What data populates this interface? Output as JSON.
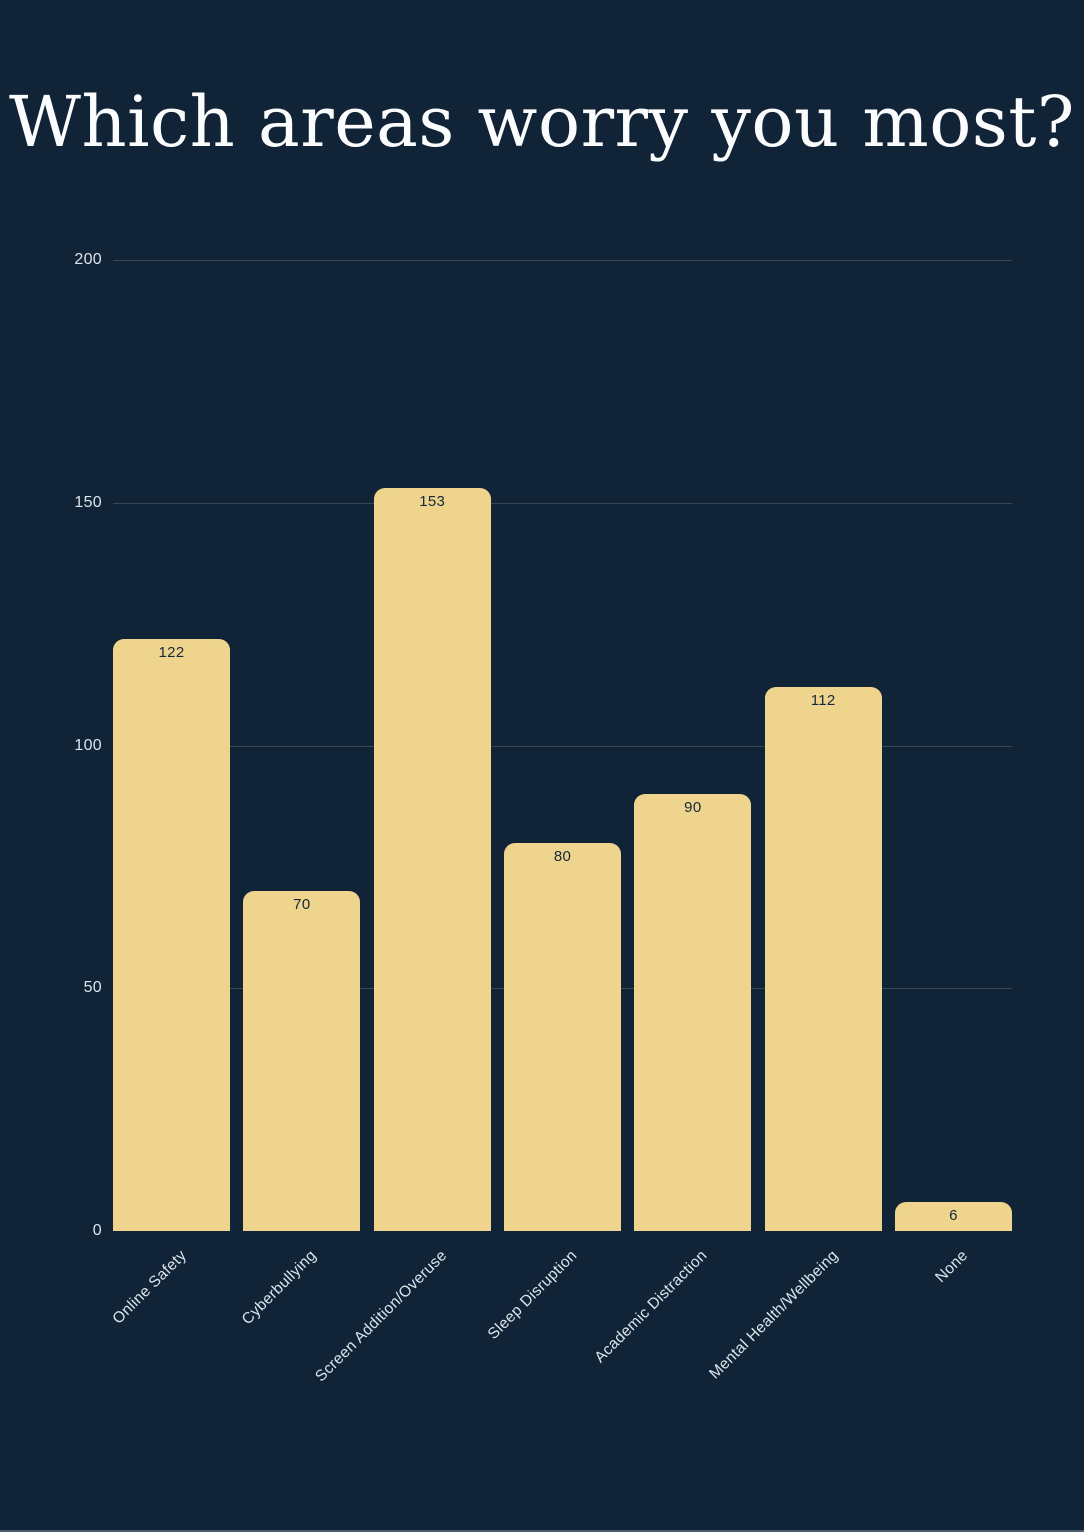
{
  "page": {
    "title": "Which areas worry you most?"
  },
  "colors": {
    "background": "#112336",
    "title_text": "#fbfcfd",
    "bar_fill": "#eed48d",
    "bar_value_text": "#16283a",
    "axis_label_text": "#dce4ec",
    "gridline": "rgba(255,255,255,0.16)"
  },
  "chart_data": {
    "type": "bar",
    "title": "Which areas worry you most?",
    "categories": [
      "Online Safety",
      "Cyberbullying",
      "Screen Addition/Overuse",
      "Sleep Disruption",
      "Academic Distraction",
      "Mental Health/Wellbeing",
      "None"
    ],
    "values": [
      122,
      70,
      153,
      80,
      90,
      112,
      6
    ],
    "data_labels": [
      "122",
      "70",
      "153",
      "80",
      "90",
      "112",
      "6"
    ],
    "xlabel": "",
    "ylabel": "",
    "ylim": [
      0,
      200
    ],
    "yticks": [
      0,
      50,
      100,
      150,
      200
    ],
    "grid": true,
    "gridlines_at": [
      50,
      100,
      150,
      200
    ],
    "legend": false,
    "bar_label_position": "inside-top",
    "x_label_rotation_deg": -45
  }
}
